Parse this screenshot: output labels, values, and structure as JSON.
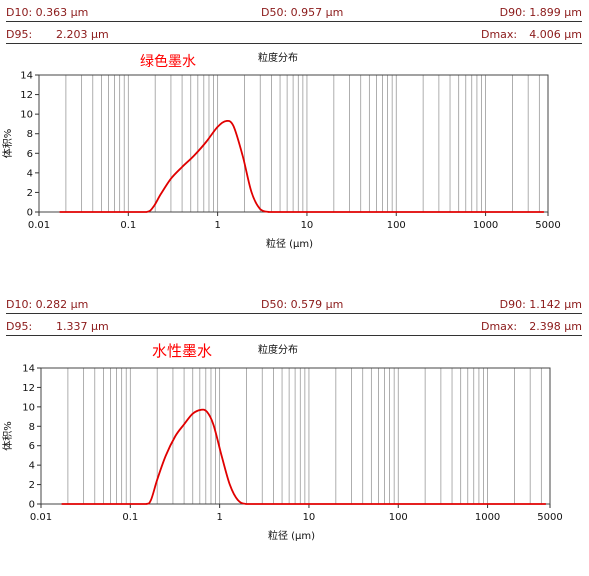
{
  "charts": [
    {
      "stats": {
        "d10": "D10: 0.363  μm",
        "d50": "D50: 0.957  μm",
        "d90": "D90: 1.899  μm",
        "d95_label": "D95:",
        "d95_value": "2.203  μm",
        "dmax_label": "Dmax:",
        "dmax_value": "4.006  μm"
      },
      "annotation": "绿色墨水",
      "chart_data": {
        "type": "line",
        "title": "粒度分布",
        "xlabel": "粒径 (μm)",
        "ylabel": "体积%",
        "xscale": "log",
        "xlim": [
          0.01,
          5000
        ],
        "ylim": [
          0,
          14
        ],
        "xticks": [
          "0.01",
          "0.1",
          "1",
          "10",
          "100",
          "1000",
          "5000"
        ],
        "yticks": [
          "0",
          "2",
          "4",
          "6",
          "8",
          "10",
          "12",
          "14"
        ],
        "grid": "vertical",
        "series": [
          {
            "color": "#e00000",
            "x": [
              0.017,
              0.1,
              0.16,
              0.19,
              0.23,
              0.3,
              0.4,
              0.55,
              0.75,
              1.0,
              1.25,
              1.5,
              1.9,
              2.4,
              3.0,
              3.8,
              5.0,
              100,
              4500
            ],
            "y": [
              0,
              0,
              0,
              0.5,
              1.8,
              3.4,
              4.6,
              5.8,
              7.2,
              8.7,
              9.3,
              8.8,
              5.8,
              2.0,
              0.3,
              0,
              0,
              0,
              0
            ]
          }
        ]
      }
    },
    {
      "stats": {
        "d10": "D10: 0.282  μm",
        "d50": "D50: 0.579  μm",
        "d90": "D90: 1.142  μm",
        "d95_label": "D95:",
        "d95_value": "1.337  μm",
        "dmax_label": "Dmax:",
        "dmax_value": "2.398  μm"
      },
      "annotation": "水性墨水",
      "chart_data": {
        "type": "line",
        "title": "粒度分布",
        "xlabel": "粒径 (μm)",
        "ylabel": "体积%",
        "xscale": "log",
        "xlim": [
          0.01,
          5000
        ],
        "ylim": [
          0,
          14
        ],
        "xticks": [
          "0.01",
          "0.1",
          "1",
          "10",
          "100",
          "1000",
          "5000"
        ],
        "yticks": [
          "0",
          "2",
          "4",
          "6",
          "8",
          "10",
          "12",
          "14"
        ],
        "grid": "vertical",
        "series": [
          {
            "color": "#e00000",
            "x": [
              0.017,
              0.1,
              0.15,
              0.17,
              0.2,
              0.25,
              0.32,
              0.4,
              0.5,
              0.62,
              0.72,
              0.85,
              1.05,
              1.3,
              1.6,
              2.0,
              3.0,
              100,
              4500
            ],
            "y": [
              0,
              0,
              0,
              0.4,
              2.5,
              5.0,
              7.0,
              8.2,
              9.3,
              9.7,
              9.5,
              8.2,
              5.0,
              2.0,
              0.4,
              0,
              0,
              0,
              0
            ]
          }
        ]
      }
    }
  ]
}
